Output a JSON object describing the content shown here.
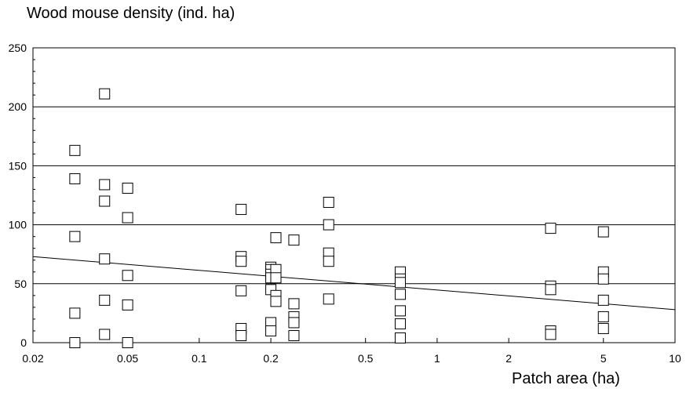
{
  "chart_data": {
    "type": "scatter",
    "title": "",
    "ylabel": "Wood mouse density (ind. ha)",
    "xlabel": "Patch area (ha)",
    "x_scale": "log",
    "xlim": [
      0.02,
      10
    ],
    "ylim": [
      0,
      250
    ],
    "x_ticks": [
      0.02,
      0.05,
      0.1,
      0.2,
      0.5,
      1,
      2,
      5,
      10
    ],
    "x_tick_labels": [
      "0.02",
      "0.05",
      "0.1",
      "0.2",
      "0.5",
      "1",
      "2",
      "5",
      "10"
    ],
    "y_ticks": [
      0,
      50,
      100,
      150,
      200,
      250
    ],
    "y_tick_labels": [
      "0",
      "50",
      "100",
      "150",
      "200",
      "250"
    ],
    "horizontal_grid": true,
    "marker": "open-square",
    "series": [
      {
        "points": [
          [
            0.03,
            163
          ],
          [
            0.03,
            139
          ],
          [
            0.03,
            90
          ],
          [
            0.03,
            25
          ],
          [
            0.03,
            0
          ],
          [
            0.04,
            211
          ],
          [
            0.04,
            134
          ],
          [
            0.04,
            120
          ],
          [
            0.04,
            71
          ],
          [
            0.04,
            36
          ],
          [
            0.04,
            7
          ],
          [
            0.05,
            131
          ],
          [
            0.05,
            106
          ],
          [
            0.05,
            57
          ],
          [
            0.05,
            32
          ],
          [
            0.05,
            0
          ],
          [
            0.15,
            113
          ],
          [
            0.15,
            73
          ],
          [
            0.15,
            69
          ],
          [
            0.15,
            44
          ],
          [
            0.15,
            12
          ],
          [
            0.15,
            6
          ],
          [
            0.2,
            64
          ],
          [
            0.2,
            62
          ],
          [
            0.2,
            58
          ],
          [
            0.2,
            55
          ],
          [
            0.2,
            45
          ],
          [
            0.2,
            17
          ],
          [
            0.2,
            10
          ],
          [
            0.21,
            89
          ],
          [
            0.21,
            62
          ],
          [
            0.21,
            55
          ],
          [
            0.21,
            40
          ],
          [
            0.21,
            35
          ],
          [
            0.25,
            87
          ],
          [
            0.25,
            33
          ],
          [
            0.25,
            22
          ],
          [
            0.25,
            17
          ],
          [
            0.25,
            6
          ],
          [
            0.35,
            119
          ],
          [
            0.35,
            100
          ],
          [
            0.35,
            76
          ],
          [
            0.35,
            69
          ],
          [
            0.35,
            37
          ],
          [
            0.7,
            60
          ],
          [
            0.7,
            54
          ],
          [
            0.7,
            51
          ],
          [
            0.7,
            41
          ],
          [
            0.7,
            27
          ],
          [
            0.7,
            16
          ],
          [
            0.7,
            4
          ],
          [
            3,
            97
          ],
          [
            3,
            48
          ],
          [
            3,
            45
          ],
          [
            3,
            10
          ],
          [
            3,
            7
          ],
          [
            5,
            94
          ],
          [
            5,
            60
          ],
          [
            5,
            54
          ],
          [
            5,
            36
          ],
          [
            5,
            22
          ],
          [
            5,
            12
          ]
        ]
      }
    ],
    "trend_line": {
      "from": [
        0.02,
        73
      ],
      "to": [
        10,
        28
      ]
    }
  }
}
